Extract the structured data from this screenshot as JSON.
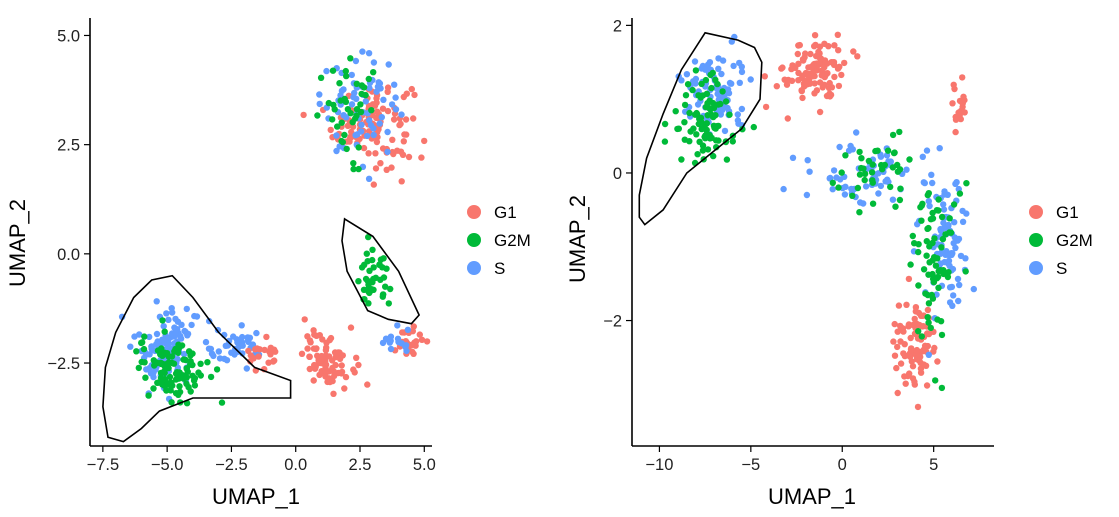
{
  "chart_data": [
    {
      "type": "scatter",
      "xlabel": "UMAP_1",
      "ylabel": "UMAP_2",
      "xlim": [
        -8.0,
        5.3
      ],
      "ylim": [
        -4.4,
        5.4
      ],
      "xticks": [
        -7.5,
        -5.0,
        -2.5,
        0.0,
        2.5,
        5.0
      ],
      "xtick_labels": [
        "−7.5",
        "−5.0",
        "−2.5",
        "0.0",
        "2.5",
        "5.0"
      ],
      "yticks": [
        -2.5,
        0.0,
        2.5,
        5.0
      ],
      "ytick_labels": [
        "−2.5",
        "0.0",
        "2.5",
        "5.0"
      ],
      "legend": [
        {
          "label": "G1",
          "color": "#F8766D"
        },
        {
          "label": "G2M",
          "color": "#00BA38"
        },
        {
          "label": "S",
          "color": "#619CFF"
        }
      ],
      "clusters": [
        {
          "phase": "G1",
          "cx": 3.0,
          "cy": 3.0,
          "sx": 1.4,
          "sy": 0.9,
          "n": 110
        },
        {
          "phase": "S",
          "cx": 2.5,
          "cy": 3.4,
          "sx": 1.4,
          "sy": 1.0,
          "n": 70
        },
        {
          "phase": "G2M",
          "cx": 2.2,
          "cy": 3.2,
          "sx": 1.2,
          "sy": 1.0,
          "n": 40
        },
        {
          "phase": "G2M",
          "cx": 3.0,
          "cy": -0.6,
          "sx": 0.6,
          "sy": 0.6,
          "n": 40
        },
        {
          "phase": "G1",
          "cx": 1.3,
          "cy": -2.4,
          "sx": 0.9,
          "sy": 0.6,
          "n": 80
        },
        {
          "phase": "G1",
          "cx": 4.5,
          "cy": -2.0,
          "sx": 0.4,
          "sy": 0.3,
          "n": 25
        },
        {
          "phase": "S",
          "cx": 3.8,
          "cy": -2.0,
          "sx": 0.6,
          "sy": 0.3,
          "n": 15
        },
        {
          "phase": "S",
          "cx": -2.3,
          "cy": -2.2,
          "sx": 1.1,
          "sy": 0.4,
          "n": 40
        },
        {
          "phase": "G1",
          "cx": -1.2,
          "cy": -2.3,
          "sx": 0.6,
          "sy": 0.3,
          "n": 20
        },
        {
          "phase": "S",
          "cx": -5.0,
          "cy": -2.1,
          "sx": 1.1,
          "sy": 0.9,
          "n": 110
        },
        {
          "phase": "G2M",
          "cx": -4.8,
          "cy": -2.6,
          "sx": 1.2,
          "sy": 0.7,
          "n": 110
        }
      ],
      "outlines": [
        [
          [
            -7.5,
            -3.5
          ],
          [
            -7.3,
            -4.2
          ],
          [
            -6.7,
            -4.3
          ],
          [
            -6.0,
            -4.0
          ],
          [
            -5.3,
            -3.6
          ],
          [
            -4.0,
            -3.3
          ],
          [
            -2.0,
            -3.3
          ],
          [
            -0.2,
            -3.3
          ],
          [
            -0.2,
            -2.9
          ],
          [
            -1.6,
            -2.6
          ],
          [
            -3.0,
            -1.8
          ],
          [
            -4.0,
            -1.0
          ],
          [
            -4.8,
            -0.5
          ],
          [
            -5.6,
            -0.6
          ],
          [
            -6.3,
            -1.0
          ],
          [
            -7.0,
            -1.8
          ],
          [
            -7.4,
            -2.6
          ]
        ],
        [
          [
            1.9,
            0.8
          ],
          [
            3.0,
            0.4
          ],
          [
            4.0,
            -0.4
          ],
          [
            4.8,
            -1.4
          ],
          [
            4.5,
            -1.6
          ],
          [
            3.6,
            -1.5
          ],
          [
            2.8,
            -1.3
          ],
          [
            2.0,
            -0.4
          ],
          [
            1.8,
            0.3
          ]
        ]
      ]
    },
    {
      "type": "scatter",
      "xlabel": "UMAP_1",
      "ylabel": "UMAP_2",
      "xlim": [
        -11.5,
        8.3
      ],
      "ylim": [
        -3.7,
        2.1
      ],
      "xticks": [
        -10,
        -5,
        0,
        5
      ],
      "xtick_labels": [
        "−10",
        "−5",
        "0",
        "5"
      ],
      "yticks": [
        -2,
        0,
        2
      ],
      "ytick_labels": [
        "−2",
        "0",
        "2"
      ],
      "legend": [
        {
          "label": "G1",
          "color": "#F8766D"
        },
        {
          "label": "G2M",
          "color": "#00BA38"
        },
        {
          "label": "S",
          "color": "#619CFF"
        }
      ],
      "clusters": [
        {
          "phase": "G1",
          "cx": -1.5,
          "cy": 1.4,
          "sx": 1.5,
          "sy": 0.4,
          "n": 110
        },
        {
          "phase": "S",
          "cx": -7.0,
          "cy": 1.1,
          "sx": 1.6,
          "sy": 0.5,
          "n": 90
        },
        {
          "phase": "G2M",
          "cx": -7.5,
          "cy": 0.7,
          "sx": 1.8,
          "sy": 0.6,
          "n": 90
        },
        {
          "phase": "S",
          "cx": 1.0,
          "cy": 0.0,
          "sx": 2.5,
          "sy": 0.4,
          "n": 60
        },
        {
          "phase": "G2M",
          "cx": 2.0,
          "cy": 0.0,
          "sx": 2.2,
          "sy": 0.4,
          "n": 40
        },
        {
          "phase": "G1",
          "cx": 3.9,
          "cy": -2.3,
          "sx": 1.0,
          "sy": 0.5,
          "n": 90
        },
        {
          "phase": "S",
          "cx": 5.5,
          "cy": -0.9,
          "sx": 1.2,
          "sy": 0.9,
          "n": 90
        },
        {
          "phase": "G2M",
          "cx": 5.0,
          "cy": -1.3,
          "sx": 1.2,
          "sy": 1.0,
          "n": 70
        },
        {
          "phase": "G1",
          "cx": 6.5,
          "cy": 0.9,
          "sx": 0.4,
          "sy": 0.3,
          "n": 20
        }
      ],
      "outlines": [
        [
          [
            -11.1,
            -0.6
          ],
          [
            -10.8,
            -0.7
          ],
          [
            -9.8,
            -0.5
          ],
          [
            -8.5,
            0.0
          ],
          [
            -7.0,
            0.3
          ],
          [
            -5.5,
            0.6
          ],
          [
            -4.5,
            1.0
          ],
          [
            -4.4,
            1.5
          ],
          [
            -4.8,
            1.7
          ],
          [
            -5.7,
            1.8
          ],
          [
            -7.5,
            1.9
          ],
          [
            -8.8,
            1.4
          ],
          [
            -9.8,
            0.8
          ],
          [
            -10.7,
            0.2
          ],
          [
            -11.1,
            -0.3
          ]
        ]
      ]
    }
  ]
}
